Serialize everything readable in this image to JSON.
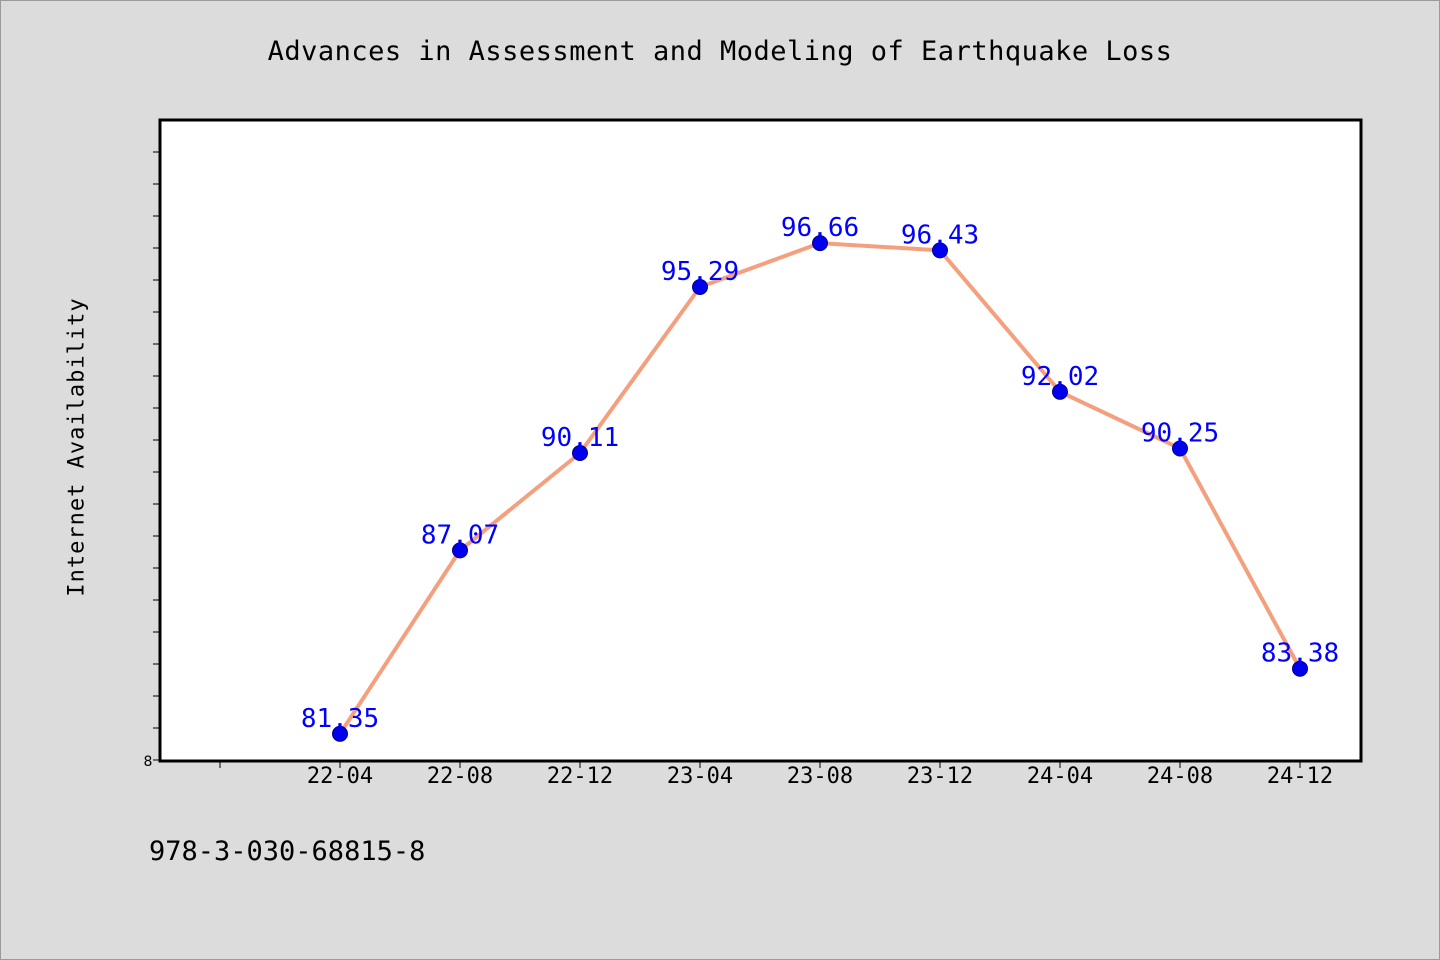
{
  "chart_data": {
    "type": "line",
    "title": "Advances in Assessment and Modeling of Earthquake Loss",
    "xlabel": "",
    "ylabel": "Internet Availability",
    "categories": [
      "22-04",
      "22-08",
      "22-12",
      "23-04",
      "23-08",
      "23-12",
      "24-04",
      "24-08",
      "24-12"
    ],
    "series": [
      {
        "values": [
          81.35,
          87.07,
          90.11,
          95.29,
          96.66,
          96.43,
          92.02,
          90.25,
          83.38
        ]
      }
    ],
    "data_labels": [
      "81.35",
      "87.07",
      "90.11",
      "95.29",
      "96.66",
      "96.43",
      "92.02",
      "90.25",
      "83.38"
    ],
    "y_tick_label": "8",
    "ylim": [
      80.5,
      100.5
    ],
    "grid": false,
    "legend": "none",
    "colors": {
      "line": "#f4a07e",
      "marker": "#0000ee",
      "data_label": "#0000ff",
      "plot_background": "#ffffff",
      "page_background": "#dcdcdc"
    }
  },
  "footer": {
    "isbn": "978-3-030-68815-8"
  }
}
